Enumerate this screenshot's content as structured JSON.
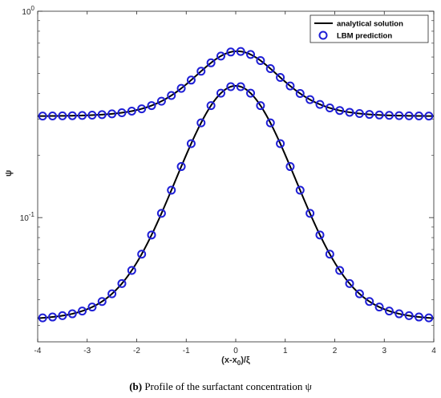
{
  "chart_data": {
    "type": "line",
    "title": "",
    "xlabel": "(x-x0)/ξ",
    "ylabel": "ψ",
    "xlim": [
      -4,
      4
    ],
    "ylim": [
      0.025,
      1
    ],
    "yscale": "log",
    "x_ticks": [
      "-4",
      "-3",
      "-2",
      "-1",
      "0",
      "1",
      "2",
      "3",
      "4"
    ],
    "y_ticks": [
      {
        "value": 1,
        "base": "10",
        "exp": "0"
      },
      {
        "value": 0.1,
        "base": "10",
        "exp": "-1"
      }
    ],
    "legend_position": "top-right",
    "grid": false,
    "colors": {
      "analytical": "#000000",
      "lbm": "#1f1fd6"
    },
    "series": [
      {
        "name": "analytical solution",
        "style": "line",
        "curves": [
          {
            "baseline": 0.31,
            "peak": 0.64,
            "x0": 0.03
          },
          {
            "baseline": 0.032,
            "peak": 0.435,
            "x0": 0.0
          }
        ]
      },
      {
        "name": "LBM prediction",
        "style": "circle-markers",
        "x": [
          -3.9,
          -3.7,
          -3.5,
          -3.3,
          -3.1,
          -2.9,
          -2.7,
          -2.5,
          -2.3,
          -2.1,
          -1.9,
          -1.7,
          -1.5,
          -1.3,
          -1.1,
          -0.9,
          -0.7,
          -0.5,
          -0.3,
          -0.1,
          0.1,
          0.3,
          0.5,
          0.7,
          0.9,
          1.1,
          1.3,
          1.5,
          1.7,
          1.9,
          2.1,
          2.3,
          2.5,
          2.7,
          2.9,
          3.1,
          3.3,
          3.5,
          3.7,
          3.9
        ]
      }
    ]
  },
  "legend": {
    "analytical_label": "analytical solution",
    "lbm_label": "LBM prediction"
  },
  "caption": {
    "label": "(b)",
    "text": "Profile of the surfactant concentration ψ"
  }
}
